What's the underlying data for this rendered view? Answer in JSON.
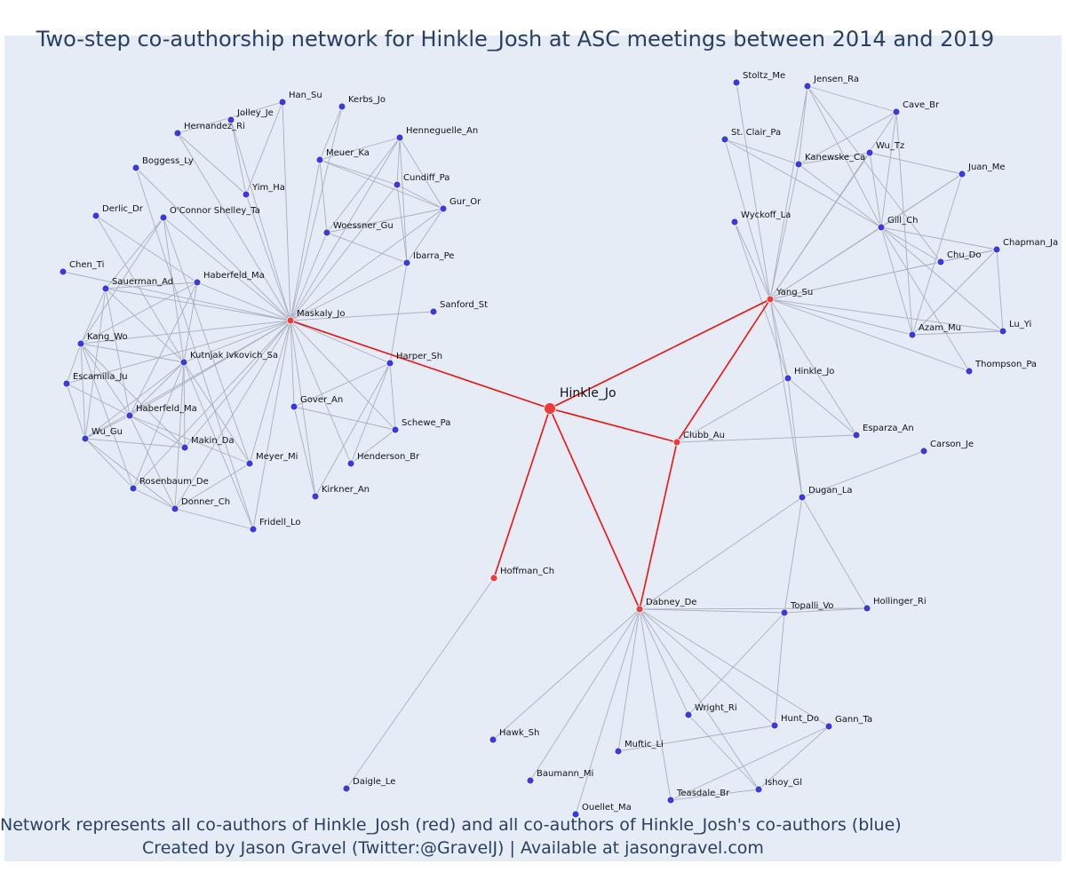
{
  "title": "Two-step co-authorship network for Hinkle_Josh at ASC meetings between 2014 and 2019",
  "caption_line1": "Network represents all co-authors of Hinkle_Josh (red) and all co-authors of Hinkle_Josh's co-authors (blue)",
  "caption_line2": "Created by Jason Gravel (Twitter:@GravelJ) | Available at jasongravel.com",
  "colors": {
    "background": "#e5ecf6",
    "red_node": "#ef3b3b",
    "blue_node": "#3b3bdb",
    "red_edge": "#ee1111",
    "gray_edge": "#a9afc0",
    "text": "#2a3f5f"
  },
  "network": {
    "center": "Hinkle_Jo",
    "nodes": [
      {
        "id": "Hinkle_Jo",
        "group": "center"
      },
      {
        "id": "Maskaly_Jo",
        "group": "red"
      },
      {
        "id": "Yang_Su",
        "group": "red"
      },
      {
        "id": "Clubb_Au",
        "group": "red"
      },
      {
        "id": "Dabney_De",
        "group": "red"
      },
      {
        "id": "Hoffman_Ch",
        "group": "red"
      },
      {
        "id": "Han_Su",
        "group": "blue"
      },
      {
        "id": "Kerbs_Jo",
        "group": "blue"
      },
      {
        "id": "Jolley_Je",
        "group": "blue"
      },
      {
        "id": "Hernandez_Ri",
        "group": "blue"
      },
      {
        "id": "Henneguelle_An",
        "group": "blue"
      },
      {
        "id": "Meuer_Ka",
        "group": "blue"
      },
      {
        "id": "Cundiff_Pa",
        "group": "blue"
      },
      {
        "id": "Boggess_Ly",
        "group": "blue"
      },
      {
        "id": "Yim_Ha",
        "group": "blue"
      },
      {
        "id": "Gur_Or",
        "group": "blue"
      },
      {
        "id": "Derlic_Dr",
        "group": "blue"
      },
      {
        "id": "O'Connor Shelley_Ta",
        "group": "blue"
      },
      {
        "id": "Woessner_Gu",
        "group": "blue"
      },
      {
        "id": "Ibarra_Pe",
        "group": "blue"
      },
      {
        "id": "Chen_Ti",
        "group": "blue"
      },
      {
        "id": "Haberfeld_Ma",
        "group": "blue"
      },
      {
        "id": "Sauerman_Ad",
        "group": "blue"
      },
      {
        "id": "Sanford_St",
        "group": "blue"
      },
      {
        "id": "Kang_Wo",
        "group": "blue"
      },
      {
        "id": "Kutnjak Ivkovich_Sa",
        "group": "blue"
      },
      {
        "id": "Harper_Sh",
        "group": "blue"
      },
      {
        "id": "Escamilla_Ju",
        "group": "blue"
      },
      {
        "id": "Gover_An",
        "group": "blue"
      },
      {
        "id": "Haberfeld_Ma ",
        "group": "blue"
      },
      {
        "id": "Schewe_Pa",
        "group": "blue"
      },
      {
        "id": "Wu_Gu",
        "group": "blue"
      },
      {
        "id": "Makin_Da",
        "group": "blue"
      },
      {
        "id": "Meyer_Mi",
        "group": "blue"
      },
      {
        "id": "Henderson_Br",
        "group": "blue"
      },
      {
        "id": "Rosenbaum_De",
        "group": "blue"
      },
      {
        "id": "Kirkner_An",
        "group": "blue"
      },
      {
        "id": "Donner_Ch",
        "group": "blue"
      },
      {
        "id": "Fridell_Lo",
        "group": "blue"
      },
      {
        "id": "Stoltz_Me",
        "group": "blue"
      },
      {
        "id": "Jensen_Ra",
        "group": "blue"
      },
      {
        "id": "Cave_Br",
        "group": "blue"
      },
      {
        "id": "St. Clair_Pa",
        "group": "blue"
      },
      {
        "id": "Wu_Tz",
        "group": "blue"
      },
      {
        "id": "Kanewske_Ca",
        "group": "blue"
      },
      {
        "id": "Juan_Me",
        "group": "blue"
      },
      {
        "id": "Wyckoff_La",
        "group": "blue"
      },
      {
        "id": "Gill_Ch",
        "group": "blue"
      },
      {
        "id": "Chapman_Ja",
        "group": "blue"
      },
      {
        "id": "Chu_Do",
        "group": "blue"
      },
      {
        "id": "Azam_Mu",
        "group": "blue"
      },
      {
        "id": "Lu_Yi",
        "group": "blue"
      },
      {
        "id": "Hinkle_Jo ",
        "group": "blue"
      },
      {
        "id": "Thompson_Pa",
        "group": "blue"
      },
      {
        "id": "Esparza_An",
        "group": "blue"
      },
      {
        "id": "Carson_Je",
        "group": "blue"
      },
      {
        "id": "Dugan_La",
        "group": "blue"
      },
      {
        "id": "Topalli_Vo",
        "group": "blue"
      },
      {
        "id": "Hollinger_Ri",
        "group": "blue"
      },
      {
        "id": "Wright_Ri",
        "group": "blue"
      },
      {
        "id": "Hunt_Do",
        "group": "blue"
      },
      {
        "id": "Gann_Ta",
        "group": "blue"
      },
      {
        "id": "Hawk_Sh",
        "group": "blue"
      },
      {
        "id": "Muftic_Li",
        "group": "blue"
      },
      {
        "id": "Baumann_Mi",
        "group": "blue"
      },
      {
        "id": "Teasdale_Br",
        "group": "blue"
      },
      {
        "id": "Ishoy_Gl",
        "group": "blue"
      },
      {
        "id": "Ouellet_Ma",
        "group": "blue"
      },
      {
        "id": "Daigle_Le",
        "group": "blue"
      }
    ]
  }
}
